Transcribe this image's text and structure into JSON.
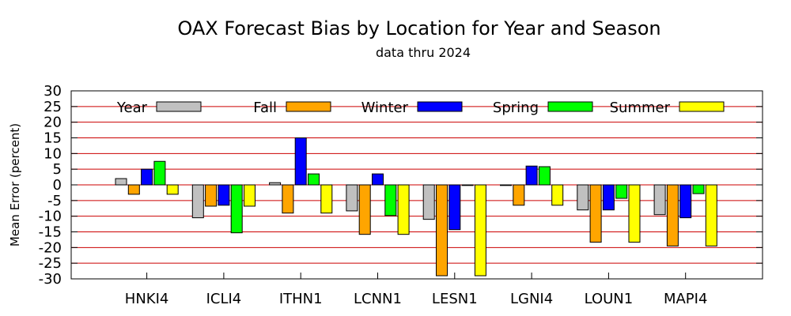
{
  "chart_data": {
    "type": "bar",
    "title": "OAX Forecast Bias by Location for Year and Season",
    "subtitle": "data thru 2024",
    "xlabel": "",
    "ylabel": "Mean Error (percent)",
    "ylim": [
      -30,
      30
    ],
    "yticks": [
      30,
      25,
      20,
      15,
      10,
      5,
      0,
      -5,
      -10,
      -15,
      -20,
      -25,
      -30
    ],
    "grid": true,
    "grid_color": "#cc0000",
    "legend_position": "top",
    "categories": [
      "HNKI4",
      "ICLI4",
      "ITHN1",
      "LCNN1",
      "LESN1",
      "LGNI4",
      "LOUN1",
      "MAPI4"
    ],
    "series": [
      {
        "name": "Year",
        "color": "#c0c0c0",
        "values": [
          2,
          -10.5,
          0.7,
          -8.3,
          -11,
          0,
          -8,
          -9.5
        ]
      },
      {
        "name": "Fall",
        "color": "#ffa500",
        "values": [
          -3,
          -6.8,
          -9,
          -15.8,
          -29,
          -6.5,
          -18.3,
          -19.5
        ]
      },
      {
        "name": "Winter",
        "color": "#0000ff",
        "values": [
          5,
          -6.5,
          15,
          3.5,
          -14.3,
          6,
          -8,
          -10.5
        ]
      },
      {
        "name": "Spring",
        "color": "#00ff00",
        "values": [
          7.5,
          -15.3,
          3.5,
          -9.8,
          0,
          5.8,
          -4.3,
          -2.8
        ]
      },
      {
        "name": "Summer",
        "color": "#ffff00",
        "values": [
          -3,
          -6.8,
          -9,
          -15.8,
          -29,
          -6.5,
          -18.3,
          -19.5
        ]
      }
    ]
  }
}
